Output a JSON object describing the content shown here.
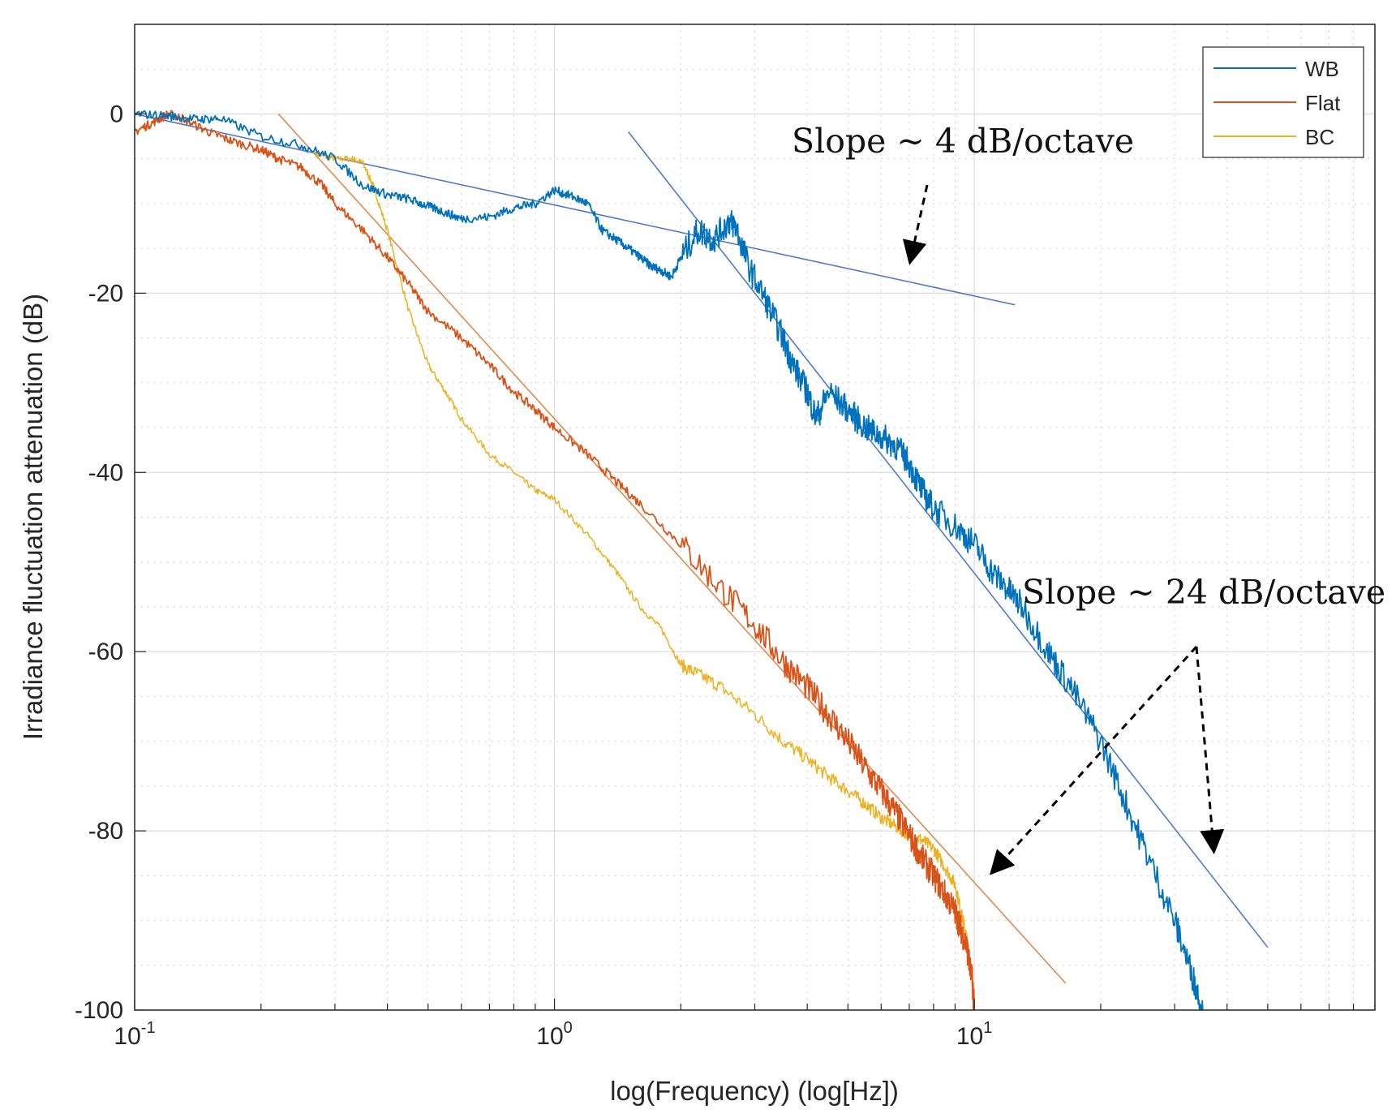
{
  "chart_data": {
    "type": "line",
    "title": "",
    "xlabel": "log(Frequency) (log[Hz])",
    "ylabel": "Irradiance fluctuation attenuation (dB)",
    "xscale": "log",
    "xlim": [
      0.1,
      90
    ],
    "ylim": [
      -100,
      10
    ],
    "x_ticks": [
      {
        "value": 0.1,
        "base": "10",
        "exp": "-1"
      },
      {
        "value": 1,
        "base": "10",
        "exp": "0"
      },
      {
        "value": 10,
        "base": "10",
        "exp": "1"
      }
    ],
    "y_ticks": [
      {
        "value": 0,
        "label": "0"
      },
      {
        "value": -20,
        "label": "-20"
      },
      {
        "value": -40,
        "label": "-40"
      },
      {
        "value": -60,
        "label": "-60"
      },
      {
        "value": -80,
        "label": "-80"
      },
      {
        "value": -100,
        "label": "-100"
      }
    ],
    "grid": true,
    "legend_position": "top-right",
    "series": [
      {
        "name": "WB",
        "color": "#0072BD",
        "x": [
          0.1,
          0.12,
          0.14,
          0.16,
          0.2,
          0.25,
          0.3,
          0.35,
          0.4,
          0.45,
          0.5,
          0.55,
          0.6,
          0.7,
          0.8,
          0.9,
          1.0,
          1.1,
          1.2,
          1.3,
          1.4,
          1.5,
          1.6,
          1.7,
          1.8,
          1.9,
          2.0,
          2.2,
          2.4,
          2.6,
          2.7,
          2.9,
          3.2,
          3.5,
          3.7,
          4.0,
          4.2,
          4.5,
          5.0,
          5.5,
          6.0,
          6.5,
          7.0,
          7.5,
          8.0,
          9.0,
          10,
          11,
          12,
          13,
          15,
          17,
          20,
          23,
          26,
          30,
          33,
          35
        ],
        "values": [
          0,
          -0.2,
          -0.6,
          -0.5,
          -2.5,
          -3.5,
          -5,
          -8,
          -9,
          -9.5,
          -10.3,
          -11,
          -11.7,
          -11.5,
          -10.5,
          -10,
          -8.5,
          -9.2,
          -10,
          -13,
          -14,
          -15,
          -16,
          -17,
          -17.5,
          -18.2,
          -16,
          -13,
          -14,
          -12,
          -12.5,
          -17,
          -21,
          -25,
          -28,
          -31,
          -34,
          -31,
          -33,
          -35,
          -36,
          -37,
          -39,
          -42,
          -44,
          -46,
          -48,
          -51,
          -53,
          -55,
          -60,
          -64,
          -70,
          -77,
          -83,
          -90,
          -96,
          -100
        ]
      },
      {
        "name": "Flat",
        "color": "#D95319",
        "x": [
          0.1,
          0.11,
          0.12,
          0.13,
          0.15,
          0.17,
          0.2,
          0.22,
          0.25,
          0.28,
          0.3,
          0.35,
          0.4,
          0.45,
          0.5,
          0.6,
          0.7,
          0.8,
          0.9,
          1.0,
          1.2,
          1.4,
          1.6,
          2.0,
          2.5,
          3.0,
          3.5,
          4.0,
          4.5,
          5.0,
          5.5,
          6.0,
          6.5,
          7.0,
          7.5,
          8.0,
          8.5,
          9.0,
          9.3,
          9.6,
          9.9,
          10.0
        ],
        "values": [
          -2,
          -1,
          0,
          -0.5,
          -2,
          -3,
          -4,
          -5,
          -6,
          -8,
          -10,
          -13,
          -16,
          -19,
          -22,
          -25,
          -28,
          -31,
          -33,
          -35,
          -38,
          -41,
          -43.5,
          -48,
          -53,
          -57,
          -61,
          -64,
          -67,
          -70,
          -73,
          -75.5,
          -78,
          -80.5,
          -83,
          -85,
          -87,
          -89,
          -91,
          -93,
          -97,
          -100
        ]
      },
      {
        "name": "BC",
        "color": "#EDB120",
        "x": [
          0.27,
          0.3,
          0.33,
          0.35,
          0.37,
          0.4,
          0.45,
          0.5,
          0.55,
          0.6,
          0.7,
          0.8,
          0.9,
          1.0,
          1.2,
          1.4,
          1.6,
          1.8,
          2.0,
          2.2,
          2.5,
          3.0,
          3.5,
          4.0,
          4.5,
          5.0,
          5.5,
          6.0,
          6.5,
          7.0,
          7.5,
          8.0,
          8.5,
          9.0,
          9.3,
          9.6,
          9.9,
          10.0
        ],
        "values": [
          -4.5,
          -5,
          -5,
          -5.5,
          -8,
          -13,
          -22,
          -28,
          -31,
          -34,
          -38,
          -40,
          -42,
          -43,
          -47,
          -51,
          -55,
          -57.5,
          -61.5,
          -62.5,
          -64,
          -67,
          -70,
          -72,
          -74,
          -75.5,
          -77,
          -78.5,
          -79.5,
          -80.5,
          -81,
          -82,
          -84,
          -86,
          -89,
          -92,
          -97,
          -100
        ]
      }
    ],
    "fit_lines": [
      {
        "color": "#4F7BC8",
        "x": [
          0.1,
          12.5
        ],
        "values": [
          0,
          -21.3
        ]
      },
      {
        "color": "#4F7BC8",
        "x": [
          1.5,
          50
        ],
        "values": [
          -2,
          -93
        ]
      },
      {
        "color": "#E08A4E",
        "x": [
          0.22,
          16.5
        ],
        "values": [
          0,
          -97
        ]
      }
    ],
    "annotations": [
      {
        "id": "slope4",
        "text": "Slope ~ 4 dB/octave"
      },
      {
        "id": "slope24",
        "text": "Slope ~ 24 dB/octave"
      }
    ]
  }
}
